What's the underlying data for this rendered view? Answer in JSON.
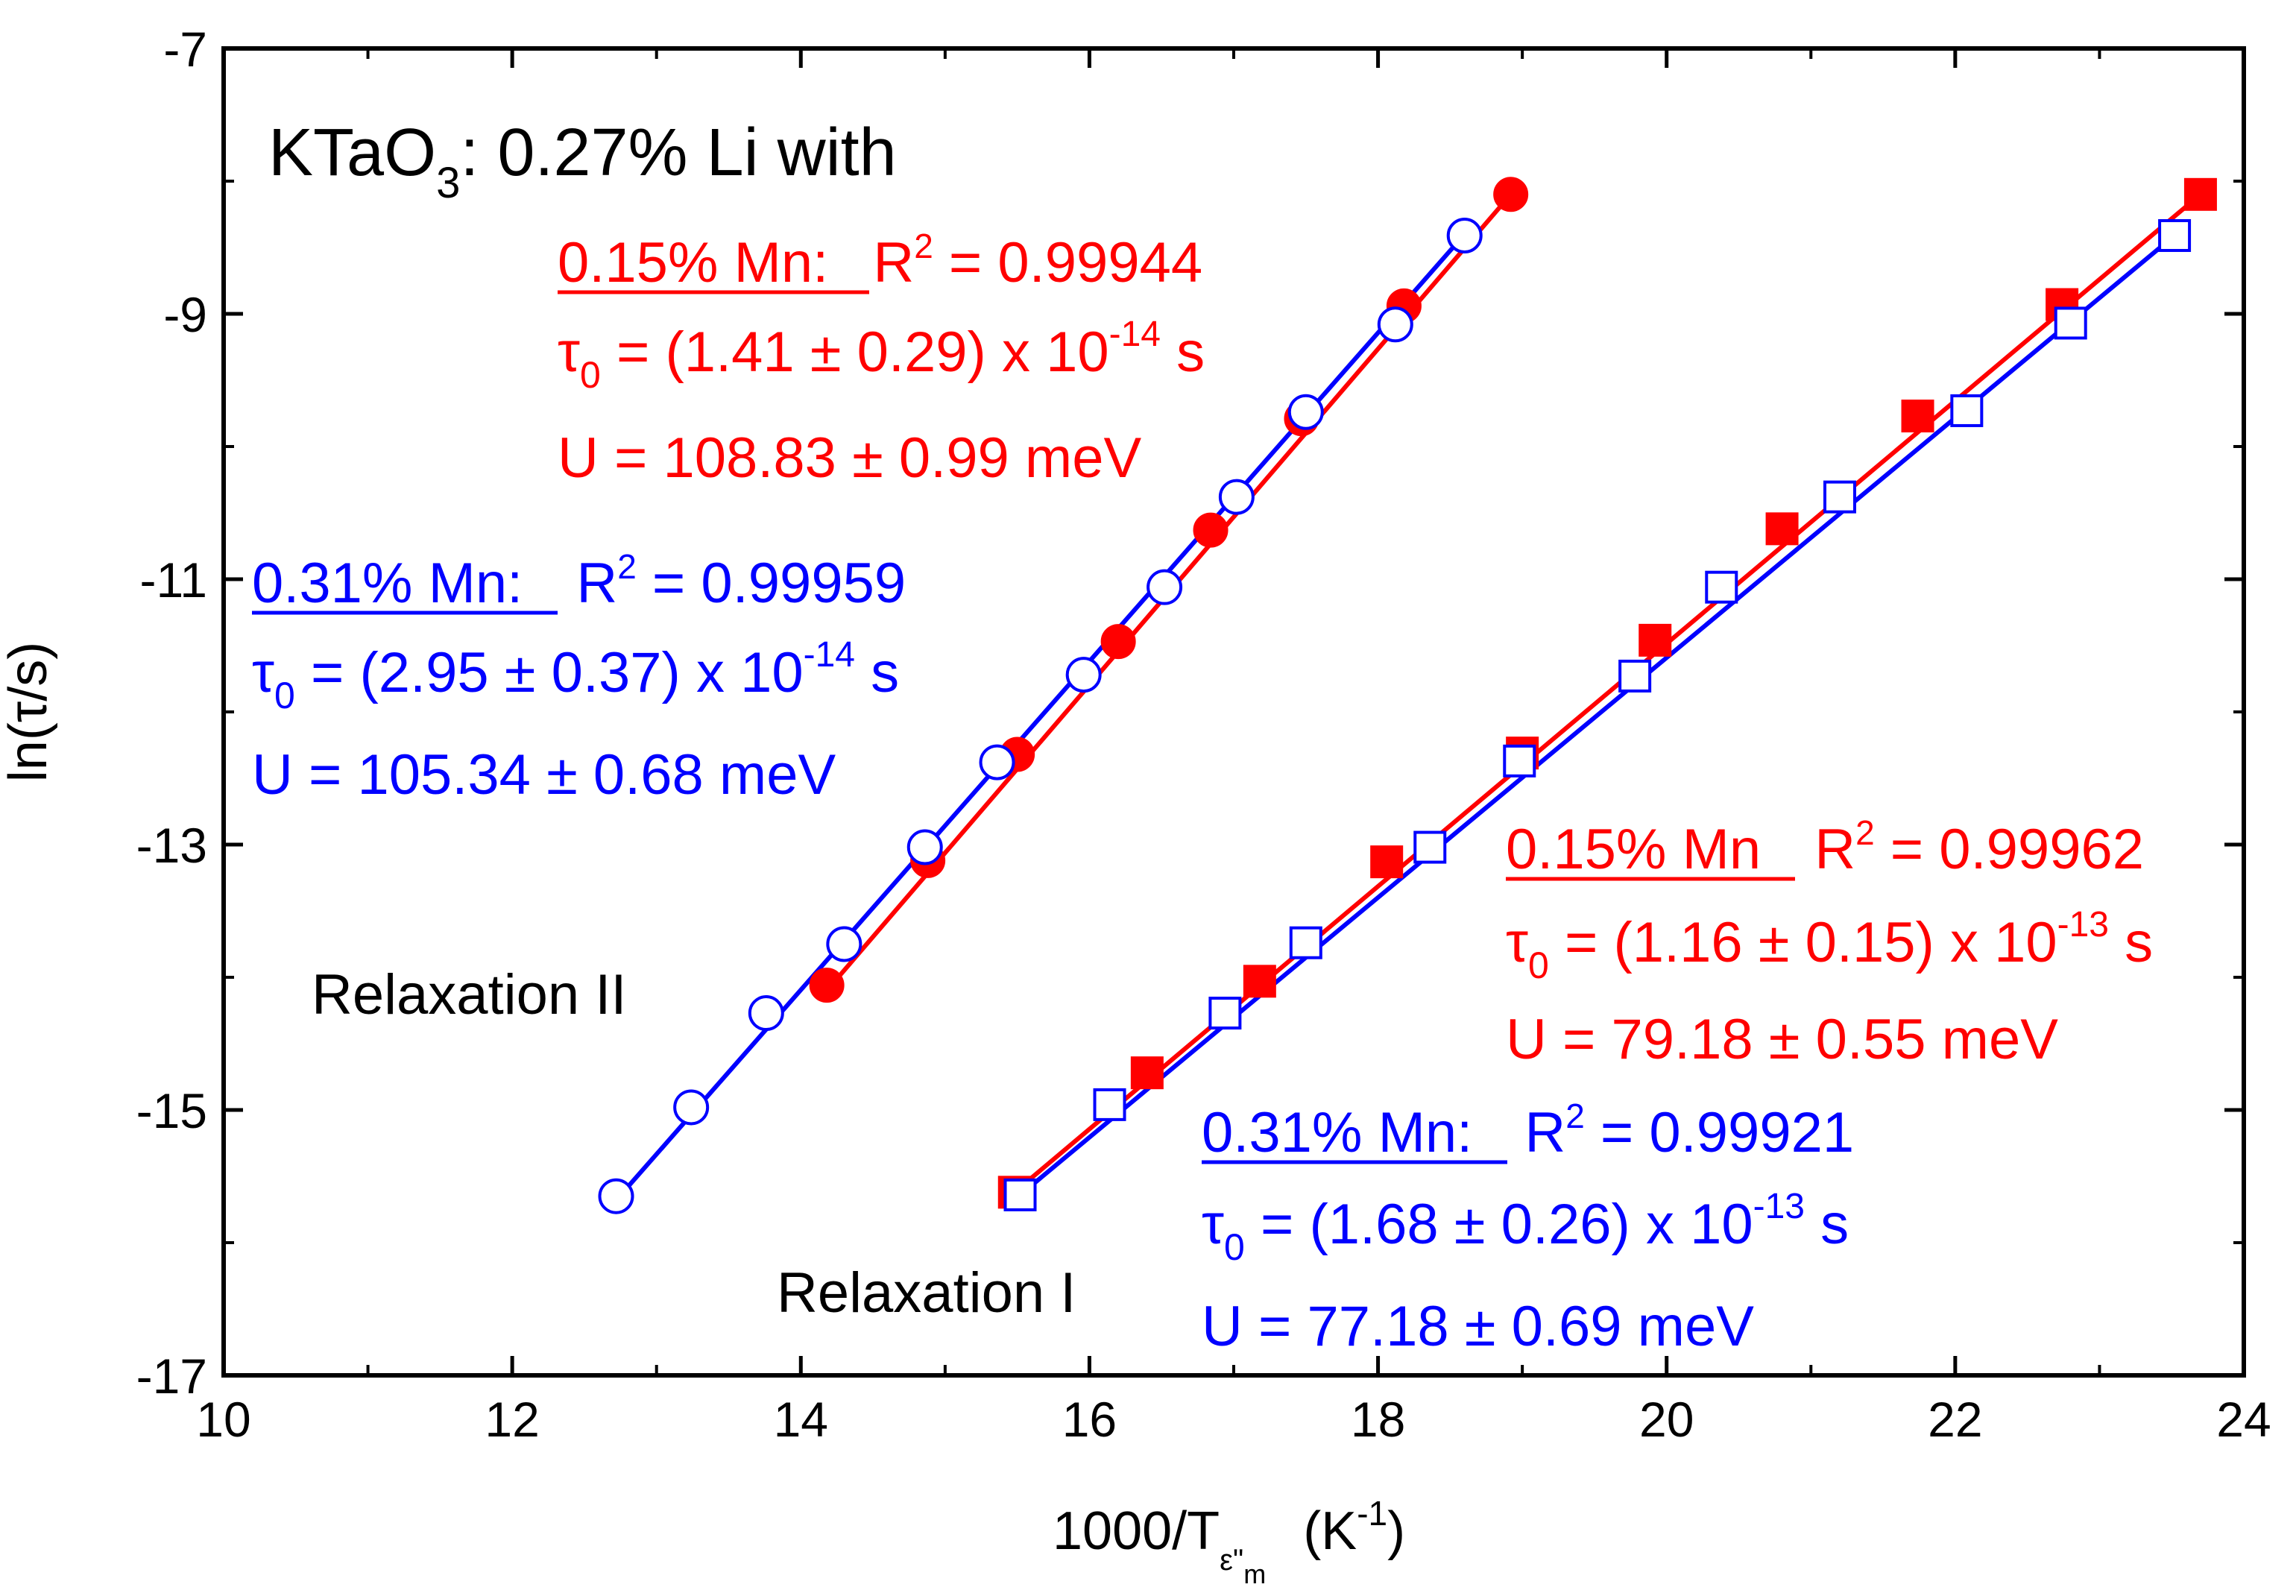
{
  "chart_data": {
    "type": "scatter",
    "xlabel": "1000/T",
    "xlabel_sub": "ε\"",
    "xlabel_subsub": "m",
    "xlabel_unit": "(K",
    "xlabel_unit_sup": "-1",
    "xlabel_unit_close": ")",
    "ylabel": "ln(τ/s)",
    "xlim": [
      10,
      24
    ],
    "ylim": [
      -17,
      -7
    ],
    "x_ticks": [
      10,
      12,
      14,
      16,
      18,
      20,
      22,
      24
    ],
    "y_ticks": [
      -7,
      -9,
      -11,
      -13,
      -15,
      -17
    ],
    "x_tick_labels": [
      "10",
      "12",
      "14",
      "16",
      "18",
      "20",
      "22",
      "24"
    ],
    "y_tick_labels": [
      "-7",
      "-9",
      "-11",
      "-13",
      "-15",
      "-17"
    ],
    "title": {
      "main": "KTaO",
      "sub": "3",
      "rest": ": 0.27% Li with"
    },
    "series": [
      {
        "name": "0.15% Mn, Relaxation II",
        "color": "#ff0000",
        "marker": "filled-circle",
        "x": [
          14.18,
          14.88,
          15.5,
          16.2,
          16.84,
          17.47,
          18.18,
          18.92
        ],
        "y": [
          -14.06,
          -13.12,
          -12.32,
          -11.47,
          -10.63,
          -9.79,
          -8.94,
          -8.1
        ],
        "fit": [
          [
            14.18,
            -14.1
          ],
          [
            18.92,
            -8.1
          ]
        ]
      },
      {
        "name": "0.31% Mn, Relaxation II",
        "color": "#0000ff",
        "marker": "open-circle",
        "x": [
          12.72,
          13.24,
          13.76,
          14.3,
          14.86,
          15.36,
          15.96,
          16.52,
          17.02,
          17.5,
          18.12,
          18.6
        ],
        "y": [
          -15.65,
          -14.98,
          -14.27,
          -13.75,
          -13.02,
          -12.38,
          -11.72,
          -11.06,
          -10.38,
          -9.74,
          -9.08,
          -8.41
        ],
        "fit": [
          [
            12.72,
            -15.68
          ],
          [
            18.6,
            -8.4
          ]
        ]
      },
      {
        "name": "0.15% Mn, Relaxation I",
        "color": "#ff0000",
        "marker": "filled-square",
        "x": [
          15.48,
          16.4,
          17.18,
          18.06,
          19.0,
          19.92,
          20.8,
          21.74,
          22.74,
          23.7
        ],
        "y": [
          -15.62,
          -14.72,
          -14.03,
          -13.13,
          -12.31,
          -11.46,
          -10.62,
          -9.77,
          -8.93,
          -8.1
        ],
        "fit": [
          [
            15.48,
            -15.62
          ],
          [
            23.7,
            -8.1
          ]
        ]
      },
      {
        "name": "0.31% Mn, Relaxation I",
        "color": "#0000ff",
        "marker": "open-square",
        "x": [
          15.52,
          16.14,
          16.94,
          17.5,
          18.36,
          18.98,
          19.78,
          20.38,
          21.2,
          22.08,
          22.8,
          23.52
        ],
        "y": [
          -15.64,
          -14.96,
          -14.27,
          -13.74,
          -13.02,
          -12.37,
          -11.73,
          -11.06,
          -10.38,
          -9.73,
          -9.07,
          -8.41
        ],
        "fit": [
          [
            15.52,
            -15.64
          ],
          [
            23.52,
            -8.41
          ]
        ]
      }
    ],
    "annotations": {
      "relax2_label": "Relaxation II",
      "relax1_label": "Relaxation I",
      "r2_015": {
        "head": "0.15% Mn:",
        "r2_lbl": "R",
        "r2_sup": "2",
        "r2_val": " = 0.99944",
        "tau_sym": "τ",
        "tau_sub": "0",
        "tau_val": " = (1.41 ± 0.29) x 10",
        "tau_exp": "-14",
        "tau_unit": " s",
        "u": "U = 108.83 ± 0.99 meV"
      },
      "r2_031": {
        "head": "0.31% Mn:",
        "r2_lbl": "R",
        "r2_sup": "2",
        "r2_val": " =  0.99959",
        "tau_sym": "τ",
        "tau_sub": "0",
        "tau_val": " = (2.95 ± 0.37) x 10",
        "tau_exp": "-14",
        "tau_unit": " s",
        "u": "U = 105.34 ± 0.68 meV"
      },
      "r1_015": {
        "head": "0.15% Mn",
        "r2_lbl": "R",
        "r2_sup": "2",
        "r2_val": " = 0.99962",
        "tau_sym": "τ",
        "tau_sub": "0",
        "tau_val": " = (1.16 ± 0.15) x 10",
        "tau_exp": "-13",
        "tau_unit": " s",
        "u": "U = 79.18 ± 0.55 meV"
      },
      "r1_031": {
        "head": "0.31% Mn:",
        "r2_lbl": "R",
        "r2_sup": "2",
        "r2_val": " = 0.99921",
        "tau_sym": "τ",
        "tau_sub": "0",
        "tau_val": " = (1.68 ± 0.26) x 10",
        "tau_exp": "-13",
        "tau_unit": " s",
        "u": "U = 77.18 ± 0.69 meV"
      }
    }
  }
}
